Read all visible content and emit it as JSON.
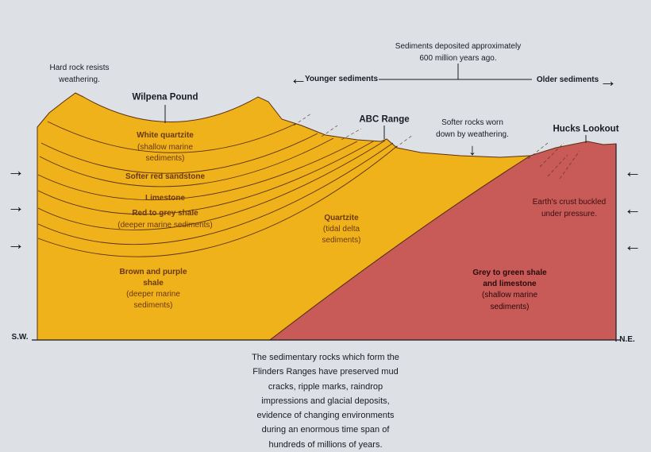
{
  "colors": {
    "background": "#dde1e6",
    "younger_rock": "#f0b21a",
    "older_rock": "#c85a58",
    "line": "#5a3010"
  },
  "top_note": {
    "line1": "Sediments deposited approximately",
    "line2": "600 million years ago."
  },
  "timeline": {
    "left": "Younger sediments",
    "right": "Older sediments",
    "left_icon": "arrow-left-icon",
    "right_icon": "arrow-right-icon"
  },
  "labels": {
    "hard_rock": [
      "Hard rock resists",
      "weathering."
    ],
    "wilpena": "Wilpena Pound",
    "abc": "ABC Range",
    "softer_rocks": [
      "Softer rocks worn",
      "down by weathering."
    ],
    "hucks": "Hucks Lookout",
    "sw": "S.W.",
    "ne": "N.E."
  },
  "layers": {
    "white_quartzite": {
      "name": "White quartzite",
      "desc1": "(shallow marine",
      "desc2": "sediments)"
    },
    "red_sandstone": {
      "name": "Softer red sandstone"
    },
    "limestone": {
      "name": "Limestone"
    },
    "red_grey_shale": {
      "name": "Red to grey shale",
      "desc": "(deeper marine sediments)"
    },
    "brown_purple": {
      "name1": "Brown and purple",
      "name2": "shale",
      "desc1": "(deeper marine",
      "desc2": "sediments)"
    },
    "quartzite": {
      "name": "Quartzite",
      "desc1": "(tidal delta",
      "desc2": "sediments)"
    },
    "grey_green": {
      "name1": "Grey to green shale",
      "name2": "and limestone",
      "desc1": "(shallow marine",
      "desc2": "sediments)"
    },
    "crust": [
      "Earth's crust buckled",
      "under pressure."
    ]
  },
  "pressure_arrows": {
    "left": "→",
    "right": "←",
    "down": "↓",
    "left_tl": "←",
    "right_tl": "→"
  },
  "caption": [
    "The sedimentary rocks which form the",
    "Flinders Ranges have preserved mud",
    "cracks, ripple marks, raindrop",
    "impressions and glacial deposits,",
    "evidence of changing environments",
    "during an enormous time span of",
    "hundreds of millions of years."
  ]
}
